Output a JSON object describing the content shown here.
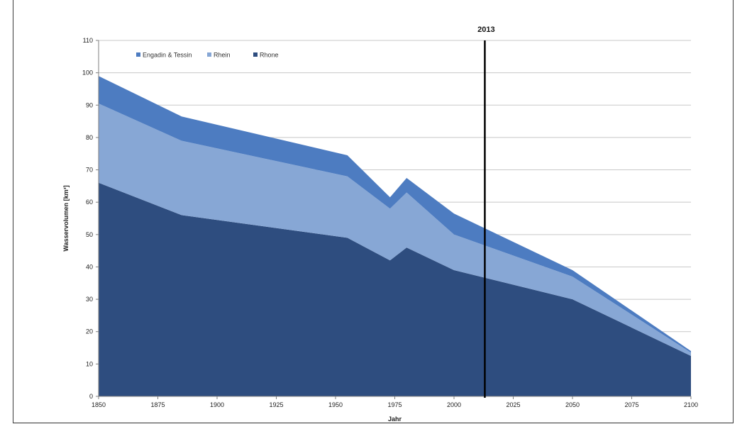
{
  "chart_data": {
    "type": "area",
    "stacked": true,
    "title": "",
    "xlabel": "Jahr",
    "ylabel": "Wasservolumen [km³]",
    "xlim": [
      1850,
      2100
    ],
    "ylim": [
      0,
      110
    ],
    "x_ticks": [
      1850,
      1875,
      1900,
      1925,
      1950,
      1975,
      2000,
      2025,
      2050,
      2075,
      2100
    ],
    "y_ticks": [
      0,
      10,
      20,
      30,
      40,
      50,
      60,
      70,
      80,
      90,
      100,
      110
    ],
    "grid": true,
    "legend_position": "top-left",
    "x": [
      1850,
      1885,
      1955,
      1973,
      1980,
      2000,
      2050,
      2100
    ],
    "series": [
      {
        "name": "Rhone",
        "color": "#2e4d7f",
        "values": [
          66,
          56,
          49,
          42,
          46,
          39,
          30,
          12.5
        ]
      },
      {
        "name": "Rhein",
        "color": "#87a7d5",
        "values": [
          24.5,
          23,
          19,
          16,
          17,
          11,
          7,
          1
        ]
      },
      {
        "name": "Engadin & Tessin",
        "color": "#4d7cc1",
        "values": [
          8.5,
          7.5,
          6.5,
          3.5,
          4.5,
          6.5,
          2,
          0.5
        ]
      }
    ],
    "legend_order": [
      "Engadin & Tessin",
      "Rhein",
      "Rhone"
    ],
    "annotations": [
      {
        "type": "vline",
        "x": 2013,
        "label": "2013",
        "color": "#000000"
      }
    ]
  }
}
